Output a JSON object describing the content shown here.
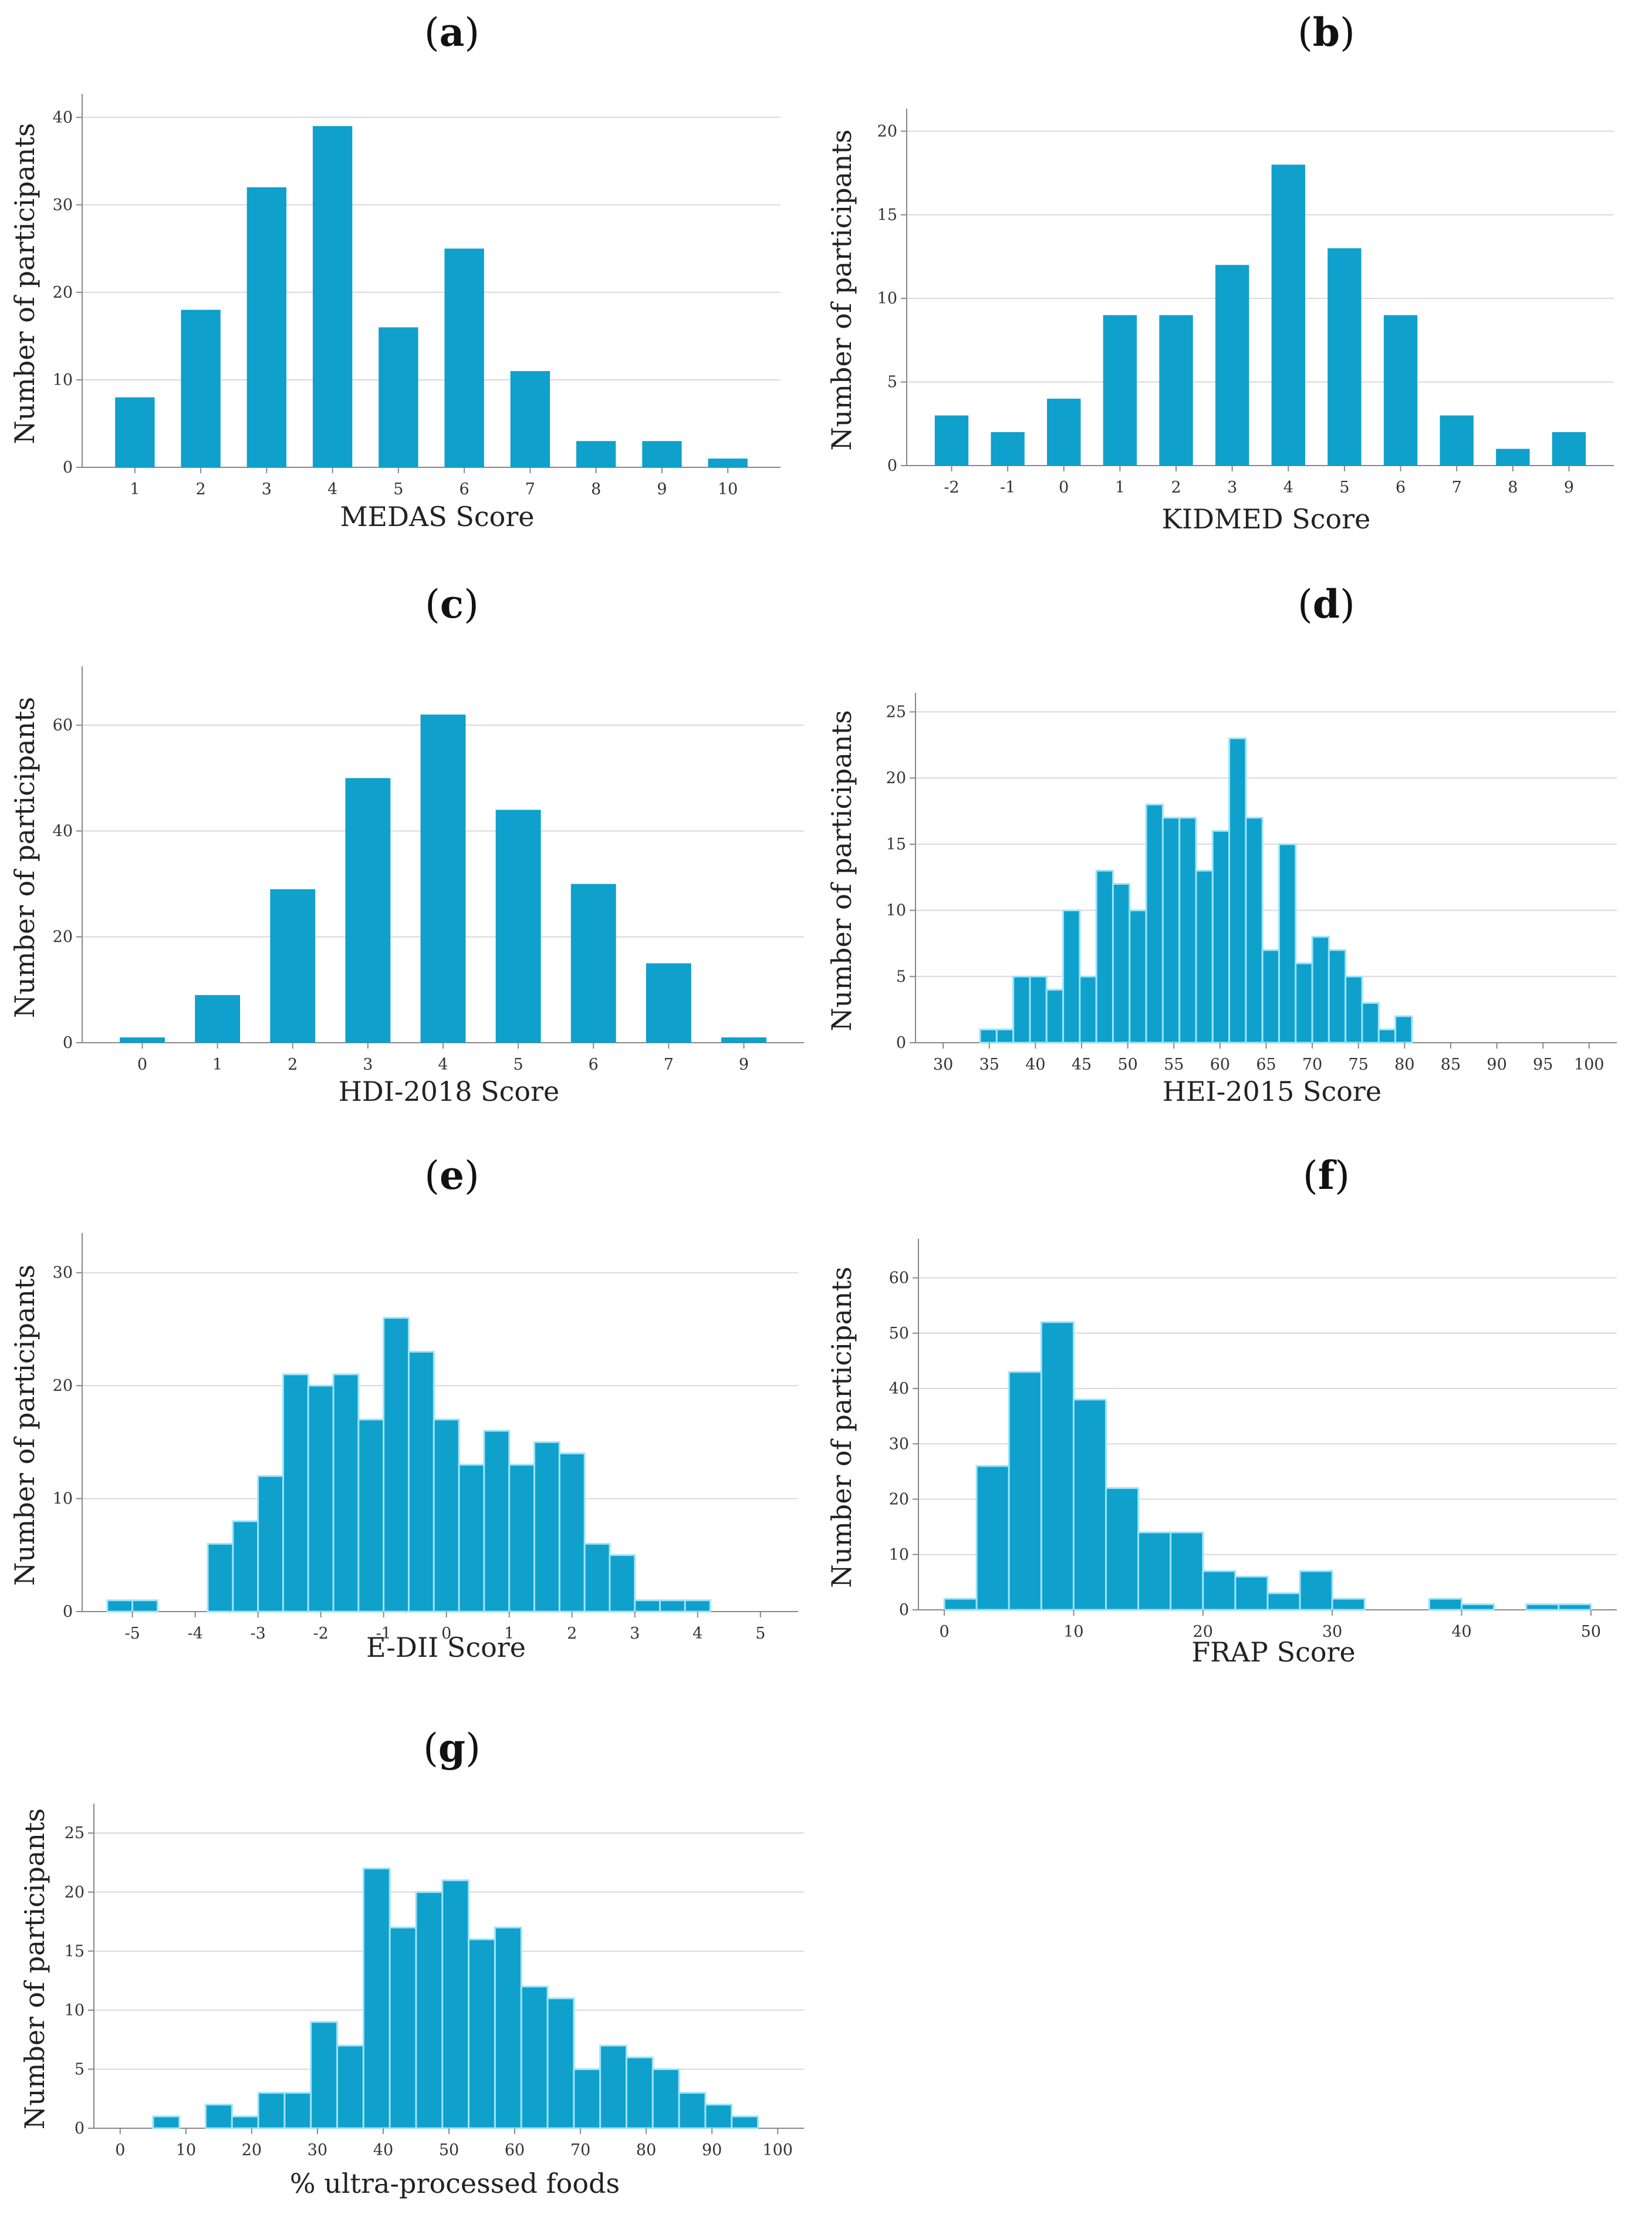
{
  "colors": {
    "bar": "#0fa0cc",
    "bar_edge": "#9fe3f7",
    "grid": "#d9d9d9",
    "axis": "#888888",
    "text": "#222222"
  },
  "chart_data": [
    {
      "id": "a",
      "type": "bar",
      "panel_label": "a",
      "xlabel": "MEDAS Score",
      "ylabel": "Number of participants",
      "categories": [
        "1",
        "2",
        "3",
        "4",
        "5",
        "6",
        "7",
        "8",
        "9",
        "10"
      ],
      "values": [
        8,
        18,
        32,
        39,
        16,
        25,
        11,
        3,
        3,
        1
      ],
      "ylim": [
        0,
        42
      ],
      "yticks": [
        0,
        10,
        20,
        30,
        40
      ],
      "grid": true
    },
    {
      "id": "b",
      "type": "bar",
      "panel_label": "b",
      "xlabel": "KIDMED Score",
      "ylabel": "Number of participants",
      "categories": [
        "-2",
        "-1",
        "0",
        "1",
        "2",
        "3",
        "4",
        "5",
        "6",
        "7",
        "8",
        "9"
      ],
      "values": [
        3,
        2,
        4,
        9,
        9,
        12,
        18,
        13,
        9,
        3,
        1,
        2
      ],
      "ylim": [
        0,
        21
      ],
      "yticks": [
        0,
        5,
        10,
        15,
        20
      ],
      "grid": true
    },
    {
      "id": "c",
      "type": "bar",
      "panel_label": "c",
      "xlabel": "HDI-2018 Score",
      "ylabel": "Number of participants",
      "categories": [
        "0",
        "1",
        "2",
        "3",
        "4",
        "5",
        "6",
        "7",
        "9"
      ],
      "values": [
        1,
        9,
        29,
        50,
        62,
        44,
        30,
        15,
        1
      ],
      "ylim": [
        0,
        70
      ],
      "yticks": [
        0,
        20,
        40,
        60
      ],
      "grid": true
    },
    {
      "id": "d",
      "type": "histogram",
      "panel_label": "d",
      "xlabel": "HEI-2015 Score",
      "ylabel": "Number of participants",
      "bin_start": 34,
      "bin_width": 1.8,
      "counts": [
        1,
        1,
        5,
        5,
        4,
        10,
        5,
        13,
        12,
        10,
        18,
        17,
        17,
        13,
        16,
        23,
        17,
        7,
        15,
        6,
        8,
        7,
        5,
        3,
        1,
        2
      ],
      "xlim": [
        27,
        103
      ],
      "xticks": [
        30,
        35,
        40,
        45,
        50,
        55,
        60,
        65,
        70,
        75,
        80,
        85,
        90,
        95,
        100
      ],
      "ylim": [
        0,
        26
      ],
      "yticks": [
        0,
        5,
        10,
        15,
        20,
        25
      ],
      "grid": true
    },
    {
      "id": "e",
      "type": "histogram",
      "panel_label": "e",
      "xlabel": "E-DII Score",
      "ylabel": "Number of participants",
      "bin_start": -5.4,
      "bin_width": 0.4,
      "counts": [
        1,
        1,
        0,
        0,
        6,
        8,
        12,
        21,
        20,
        21,
        17,
        26,
        23,
        17,
        13,
        16,
        13,
        15,
        14,
        6,
        5,
        1,
        1,
        1
      ],
      "xlim": [
        -5.8,
        5.6
      ],
      "xticks": [
        -5,
        -4,
        -3,
        -2,
        -1,
        0,
        1,
        2,
        3,
        4,
        5
      ],
      "ylim": [
        0,
        33
      ],
      "yticks": [
        0,
        10,
        20,
        30
      ],
      "grid": true
    },
    {
      "id": "f",
      "type": "histogram",
      "panel_label": "f",
      "xlabel": "FRAP Score",
      "ylabel": "Number of participants",
      "bin_start": 0,
      "bin_width": 2.5,
      "counts": [
        2,
        26,
        43,
        52,
        38,
        22,
        14,
        14,
        7,
        6,
        3,
        7,
        2,
        0,
        0,
        2,
        1,
        0,
        1,
        1
      ],
      "xlim": [
        -2,
        52
      ],
      "xticks": [
        0,
        10,
        20,
        30,
        40,
        50
      ],
      "ylim": [
        0,
        66
      ],
      "yticks": [
        0,
        10,
        20,
        30,
        40,
        50,
        60
      ],
      "grid": true
    },
    {
      "id": "g",
      "type": "histogram",
      "panel_label": "g",
      "xlabel": "% ultra-processed foods",
      "ylabel": "Number of participants",
      "bin_start": 5,
      "bin_width": 4,
      "counts": [
        1,
        0,
        2,
        1,
        3,
        3,
        9,
        7,
        22,
        17,
        20,
        21,
        16,
        17,
        12,
        11,
        5,
        7,
        6,
        5,
        3,
        2,
        1
      ],
      "xlim": [
        -4,
        104
      ],
      "xticks": [
        0,
        10,
        20,
        30,
        40,
        50,
        60,
        70,
        80,
        90,
        100
      ],
      "ylim": [
        0,
        27
      ],
      "yticks": [
        0,
        5,
        10,
        15,
        20,
        25
      ],
      "grid": true
    }
  ]
}
